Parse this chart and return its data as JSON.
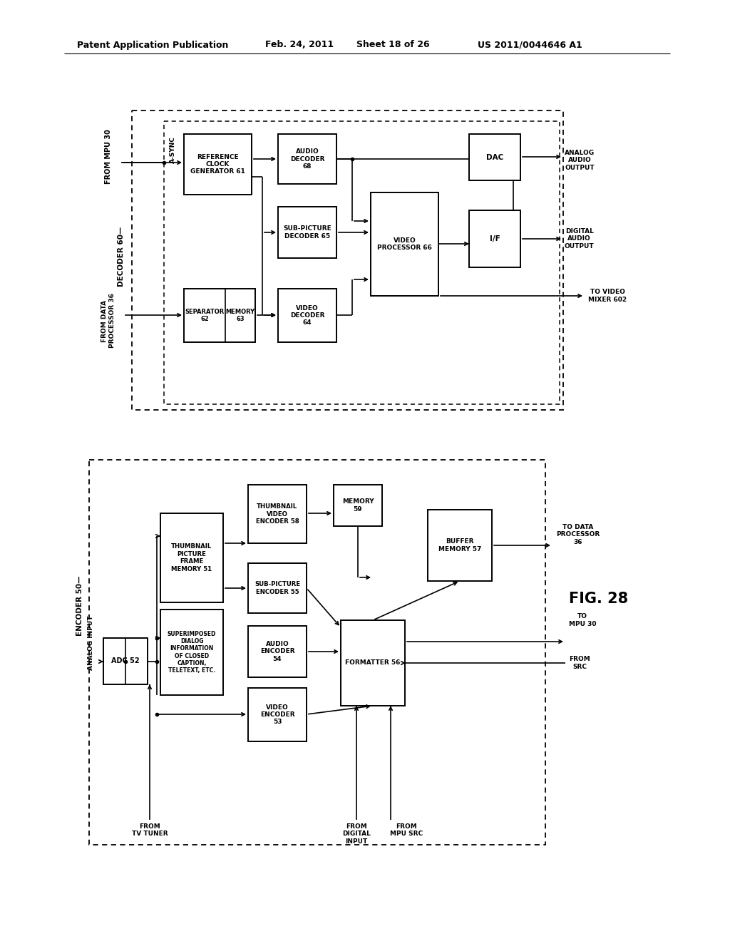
{
  "bg_color": "#ffffff",
  "header_left": "Patent Application Publication",
  "header_date": "Feb. 24, 2011",
  "header_sheet": "Sheet 18 of 26",
  "header_patent": "US 2011/0044646 A1"
}
